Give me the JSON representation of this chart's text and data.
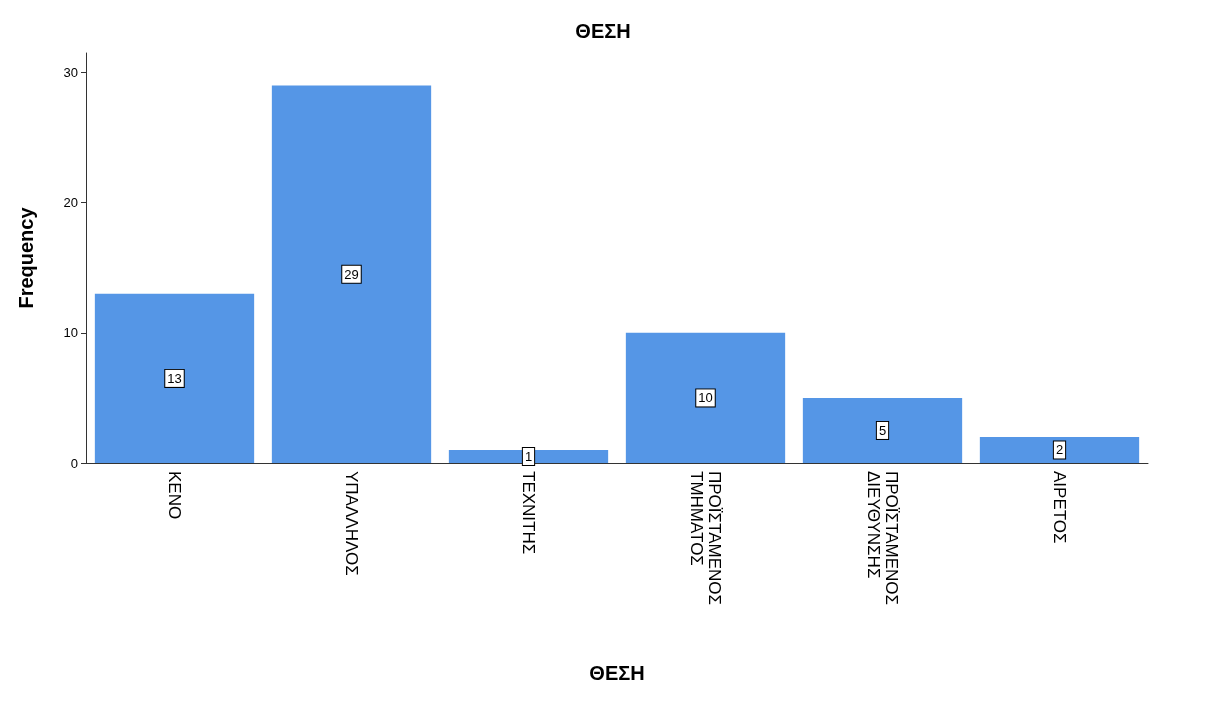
{
  "chart_data": {
    "type": "bar",
    "title": "ΘΕΣΗ",
    "xlabel": "ΘΕΣΗ",
    "ylabel": "Frequency",
    "categories": [
      "ΚΕΝΟ",
      "ΥΠΑΛΛΗΛΟΣ",
      "ΤΕΧΝΙΤΗΣ",
      "ΠΡΟΪΣΤΑΜΕΝΟΣ ΤΜΗΜΑΤΟΣ",
      "ΠΡΟΪΣΤΑΜΕΝΟΣ ΔΙΕΥΘΥΝΣΗΣ",
      "ΑΙΡΕΤΟΣ"
    ],
    "values": [
      13,
      29,
      1,
      10,
      5,
      2
    ],
    "color": "#5596e6",
    "ylim": [
      0,
      31.5
    ],
    "yticks": [
      0,
      10,
      20,
      30
    ],
    "grid": false,
    "data_labels": true
  }
}
